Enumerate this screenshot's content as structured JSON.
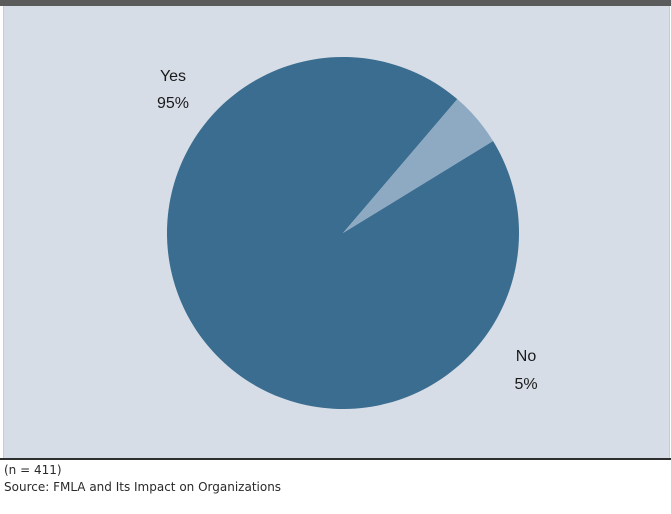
{
  "chart_data": {
    "type": "pie",
    "slices": [
      {
        "label": "Yes",
        "value": 95,
        "value_text": "95%",
        "color": "#3a6d8f"
      },
      {
        "label": "No",
        "value": 5,
        "value_text": "5%",
        "color": "#8eaac3"
      }
    ],
    "title": "",
    "legend": "none",
    "grid": false
  },
  "footer": {
    "sample_size": "(n = 411)",
    "source": "Source: FMLA and Its Impact on Organizations"
  },
  "colors": {
    "panel_background": "#d6dde7",
    "top_bar": "#5b5b5b"
  }
}
